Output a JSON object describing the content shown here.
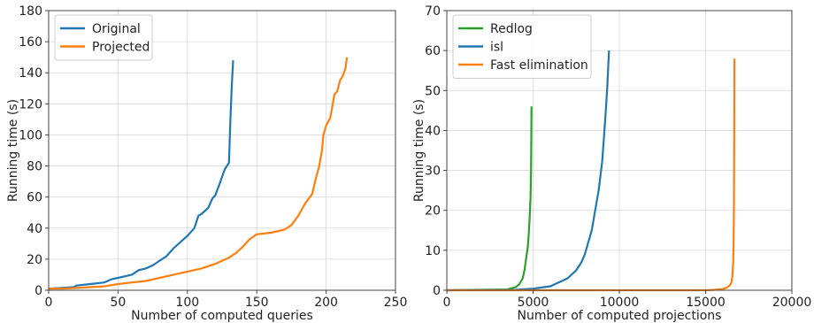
{
  "chart_data": [
    {
      "type": "line",
      "xlabel": "Number of computed queries",
      "ylabel": "Running time (s)",
      "xlim": [
        0,
        250
      ],
      "ylim": [
        0,
        180
      ],
      "xticks": [
        0,
        50,
        100,
        150,
        200,
        250
      ],
      "yticks": [
        0,
        20,
        40,
        60,
        80,
        100,
        120,
        140,
        160,
        180
      ],
      "grid": true,
      "legend_position": "top-left",
      "series": [
        {
          "name": "Original",
          "color": "#1f77b4",
          "x": [
            0,
            10,
            18,
            20,
            30,
            40,
            45,
            50,
            60,
            65,
            70,
            75,
            80,
            85,
            90,
            95,
            100,
            105,
            108,
            110,
            115,
            118,
            120,
            123,
            125,
            127,
            130,
            131,
            132,
            133
          ],
          "y": [
            1,
            1.5,
            2,
            3,
            4,
            5,
            7,
            8,
            10,
            13,
            14,
            16,
            19,
            22,
            27,
            31,
            35,
            40,
            48,
            49,
            53,
            59,
            61,
            68,
            73,
            78,
            82,
            110,
            132,
            148
          ]
        },
        {
          "name": "Projected",
          "color": "#ff7f0e",
          "x": [
            0,
            10,
            20,
            40,
            50,
            60,
            70,
            80,
            85,
            90,
            95,
            100,
            110,
            120,
            130,
            135,
            140,
            145,
            150,
            160,
            170,
            175,
            180,
            185,
            190,
            192,
            195,
            197,
            198,
            200,
            203,
            206,
            208,
            210,
            212,
            214,
            215
          ],
          "y": [
            1,
            1,
            1.5,
            2.5,
            4,
            5,
            6,
            8,
            9,
            10,
            11,
            12,
            14,
            17,
            21,
            24,
            28,
            33,
            36,
            37,
            39,
            42,
            48,
            56,
            62,
            70,
            80,
            90,
            100,
            106,
            111,
            126,
            128,
            135,
            138,
            143,
            150
          ]
        }
      ]
    },
    {
      "type": "line",
      "xlabel": "Number of computed projections",
      "ylabel": "Running time (s)",
      "xlim": [
        0,
        20000
      ],
      "ylim": [
        0,
        70
      ],
      "xticks": [
        0,
        5000,
        10000,
        15000,
        20000
      ],
      "yticks": [
        0,
        10,
        20,
        30,
        40,
        50,
        60,
        70
      ],
      "grid": true,
      "legend_position": "top-left",
      "series": [
        {
          "name": "Redlog",
          "color": "#2ca02c",
          "x": [
            0,
            3500,
            4000,
            4200,
            4400,
            4500,
            4600,
            4700,
            4750,
            4800,
            4850,
            4880,
            4900,
            4910
          ],
          "y": [
            0,
            0.2,
            0.8,
            1.5,
            3,
            5,
            8,
            11,
            14,
            18,
            23,
            30,
            38,
            46
          ]
        },
        {
          "name": "isl",
          "color": "#1f77b4",
          "x": [
            0,
            4000,
            5000,
            6000,
            6500,
            7000,
            7500,
            7800,
            8000,
            8200,
            8400,
            8600,
            8800,
            9000,
            9100,
            9200,
            9300,
            9400
          ],
          "y": [
            0,
            0.1,
            0.4,
            1,
            2,
            3,
            5,
            7,
            9,
            12,
            15,
            20,
            25,
            32,
            38,
            44,
            51,
            60
          ]
        },
        {
          "name": "Fast elimination",
          "color": "#ff7f0e",
          "x": [
            0,
            15000,
            15500,
            16000,
            16200,
            16400,
            16500,
            16550,
            16600,
            16620,
            16640,
            16650,
            16660,
            16670
          ],
          "y": [
            0,
            0,
            0.1,
            0.3,
            0.6,
            1.2,
            2,
            3.5,
            7,
            12,
            20,
            30,
            42,
            58
          ]
        }
      ]
    }
  ]
}
